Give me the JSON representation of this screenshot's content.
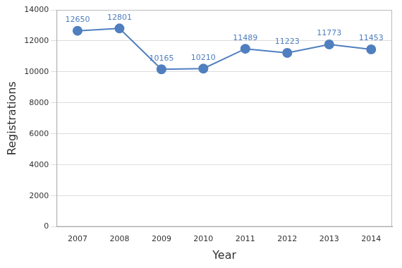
{
  "chart_data": {
    "type": "line",
    "categories": [
      "2007",
      "2008",
      "2009",
      "2010",
      "2011",
      "2012",
      "2013",
      "2014"
    ],
    "values": [
      12650,
      12801,
      10165,
      10210,
      11489,
      11223,
      11773,
      11453
    ],
    "color": "#4f7fbf",
    "x_label": "Year",
    "y_label": "Registrations",
    "ylim": [
      0,
      14000
    ],
    "yticks": [
      0,
      2000,
      4000,
      6000,
      8000,
      10000,
      12000,
      14000
    ],
    "grid": true,
    "data_labels": true,
    "marker": "circle"
  }
}
